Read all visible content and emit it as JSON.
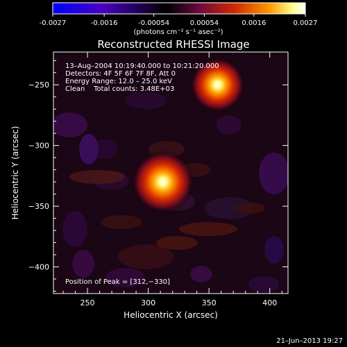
{
  "colorbar": {
    "tick_labels": [
      "-0.0027",
      "-0.0016",
      "-0.00054",
      "0.00054",
      "0.0016",
      "0.0027"
    ],
    "tick_values": [
      -0.0027,
      -0.0016,
      -0.00054,
      0.00054,
      0.0016,
      0.0027
    ],
    "range": [
      -0.0027,
      0.0027
    ],
    "units_label": "(photons cm⁻² s⁻¹ asec⁻²)",
    "colormap_stops": [
      "#0000ff",
      "#5a00c8",
      "#000000",
      "#6a0a3c",
      "#d22800",
      "#ff9600",
      "#ffff9a",
      "#ffffff"
    ]
  },
  "chart_data": {
    "type": "heatmap",
    "title": "Reconstructed RHESSI Image",
    "xlabel": "Heliocentric X (arcsec)",
    "ylabel": "Heliocentric Y (arcsec)",
    "xlim": [
      222,
      415
    ],
    "ylim": [
      -422,
      -223
    ],
    "x_ticks": [
      250,
      300,
      350,
      400
    ],
    "x_tick_labels": [
      "250",
      "300",
      "350",
      "400"
    ],
    "y_ticks": [
      -250,
      -300,
      -350,
      -400
    ],
    "y_tick_labels": [
      "−250",
      "−300",
      "−350",
      "−400"
    ],
    "sources": [
      {
        "x": 312,
        "y": -330,
        "peak": 0.0027
      },
      {
        "x": 357,
        "y": -250,
        "peak": 0.0023
      }
    ],
    "info_lines": [
      "13–Aug–2004 10:19:40.000 to 10:21:20.000",
      "Detectors: 4F 5F 6F 7F 8F, Att 0",
      "Energy Range: 12.0 – 25.0 keV",
      "Clean    Total counts: 3.48E+03"
    ],
    "peak_label": "Position of Peak = [312,−330]",
    "grid": false
  },
  "footer": {
    "timestamp": "21–Jun–2013 19:27"
  }
}
